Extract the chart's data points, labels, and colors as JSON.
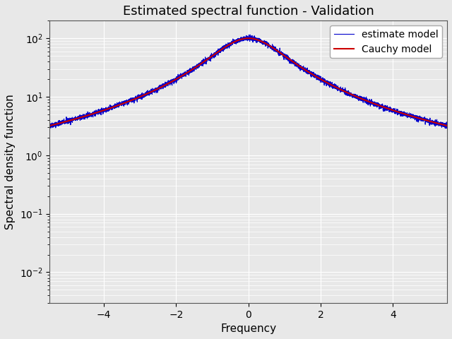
{
  "title": "Estimated spectral function - Validation",
  "xlabel": "Frequency",
  "ylabel": "Spectral density function",
  "xlim": [
    -5.5,
    5.5
  ],
  "ylim": [
    0.003,
    200
  ],
  "x_ticks": [
    -4,
    -2,
    0,
    2,
    4
  ],
  "cauchy_gamma": 1.0,
  "cauchy_peak": 100.0,
  "cauchy_color": "#cc0000",
  "estimate_color": "#0000cc",
  "cauchy_linewidth": 1.5,
  "estimate_linewidth": 0.8,
  "legend_labels": [
    "estimate model",
    "Cauchy model"
  ],
  "n_points": 5000,
  "noise_std": 0.05,
  "background_color": "#e8e8e8",
  "grid_color": "white",
  "title_fontsize": 13
}
